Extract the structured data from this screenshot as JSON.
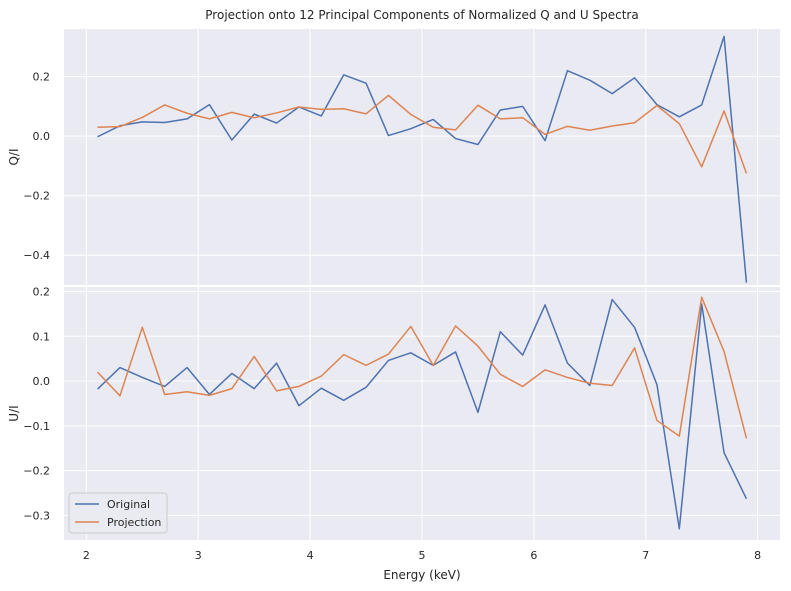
{
  "chart_data": {
    "type": "line",
    "title": "Projection onto 12 Principal Components of Normalized Q and U Spectra",
    "xlabel": "Energy (keV)",
    "x": [
      2.1,
      2.3,
      2.5,
      2.7,
      2.9,
      3.1,
      3.3,
      3.5,
      3.7,
      3.9,
      4.1,
      4.3,
      4.5,
      4.7,
      4.9,
      5.1,
      5.3,
      5.5,
      5.7,
      5.9,
      6.1,
      6.3,
      6.5,
      6.7,
      6.9,
      7.1,
      7.3,
      7.5,
      7.7,
      7.9
    ],
    "xlim": [
      1.8,
      8.2
    ],
    "xticks": [
      2,
      3,
      4,
      5,
      6,
      7,
      8
    ],
    "xtick_labels": [
      "2",
      "3",
      "4",
      "5",
      "6",
      "7",
      "8"
    ],
    "grid": true,
    "legend_position": "lower-left",
    "colors": {
      "Original": "#4c72b0",
      "Projection": "#dd8452",
      "background": "#eaeaf2",
      "grid": "#ffffff"
    },
    "panels": [
      {
        "ylabel": "Q/I",
        "ylim": [
          -0.5,
          0.36
        ],
        "yticks": [
          0.2,
          0.0,
          -0.2,
          -0.4
        ],
        "ytick_labels": [
          "0.2",
          "0.0",
          "−0.2",
          "−0.4"
        ],
        "series": [
          {
            "name": "Original",
            "values": [
              -0.002,
              0.035,
              0.048,
              0.046,
              0.058,
              0.106,
              -0.013,
              0.074,
              0.044,
              0.098,
              0.068,
              0.206,
              0.178,
              0.002,
              0.025,
              0.056,
              -0.008,
              -0.028,
              0.088,
              0.1,
              -0.015,
              0.22,
              0.188,
              0.143,
              0.196,
              0.106,
              0.065,
              0.105,
              0.335,
              -0.492
            ]
          },
          {
            "name": "Projection",
            "values": [
              0.03,
              0.032,
              0.063,
              0.105,
              0.077,
              0.058,
              0.08,
              0.062,
              0.078,
              0.098,
              0.09,
              0.092,
              0.075,
              0.137,
              0.073,
              0.03,
              0.021,
              0.104,
              0.058,
              0.062,
              0.006,
              0.033,
              0.02,
              0.034,
              0.045,
              0.103,
              0.042,
              -0.103,
              0.085,
              -0.125
            ]
          }
        ]
      },
      {
        "ylabel": "U/I",
        "ylim": [
          -0.355,
          0.21
        ],
        "yticks": [
          0.2,
          0.1,
          0.0,
          -0.1,
          -0.2,
          -0.3
        ],
        "ytick_labels": [
          "0.2",
          "0.1",
          "0.0",
          "−0.1",
          "−0.2",
          "−0.3"
        ],
        "series": [
          {
            "name": "Original",
            "values": [
              -0.018,
              0.03,
              0.008,
              -0.012,
              0.03,
              -0.03,
              0.017,
              -0.017,
              0.04,
              -0.055,
              -0.016,
              -0.043,
              -0.014,
              0.046,
              0.063,
              0.035,
              0.065,
              -0.07,
              0.11,
              0.058,
              0.17,
              0.04,
              -0.01,
              0.182,
              0.12,
              -0.008,
              -0.33,
              0.172,
              -0.16,
              -0.263
            ]
          },
          {
            "name": "Projection",
            "values": [
              0.02,
              -0.033,
              0.12,
              -0.03,
              -0.024,
              -0.032,
              -0.017,
              0.055,
              -0.022,
              -0.012,
              0.011,
              0.059,
              0.035,
              0.06,
              0.122,
              0.035,
              0.123,
              0.078,
              0.015,
              -0.012,
              0.025,
              0.008,
              -0.005,
              -0.01,
              0.074,
              -0.088,
              -0.123,
              0.187,
              0.066,
              -0.128
            ]
          }
        ]
      }
    ]
  }
}
